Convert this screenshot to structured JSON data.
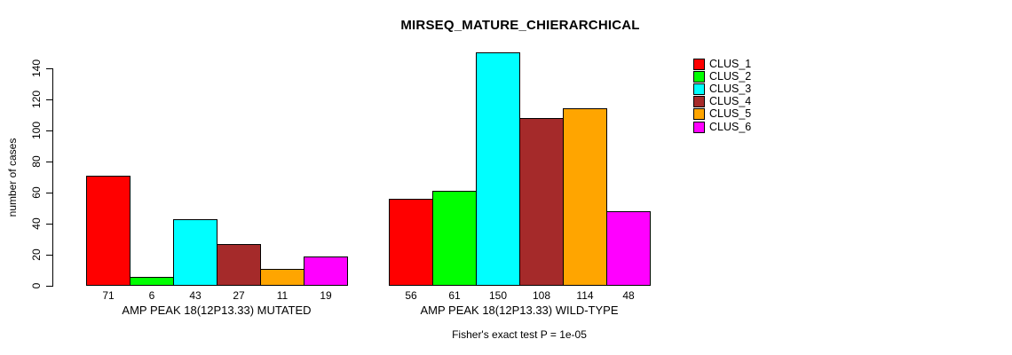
{
  "chart_data": {
    "type": "bar",
    "title": "MIRSEQ_MATURE_CHIERARCHICAL",
    "ylabel": "number of cases",
    "xlabel": "",
    "ylim": [
      0,
      150
    ],
    "yticks": [
      0,
      20,
      40,
      60,
      80,
      100,
      120,
      140
    ],
    "grid": false,
    "legend_position": "right",
    "series_names": [
      "CLUS_1",
      "CLUS_2",
      "CLUS_3",
      "CLUS_4",
      "CLUS_5",
      "CLUS_6"
    ],
    "colors": [
      "#ff0000",
      "#00ff00",
      "#00ffff",
      "#a52a2a",
      "#ffa500",
      "#ff00ff"
    ],
    "groups": [
      {
        "label": "AMP PEAK 18(12P13.33) MUTATED",
        "values": [
          71,
          6,
          43,
          27,
          11,
          19
        ]
      },
      {
        "label": "AMP PEAK 18(12P13.33) WILD-TYPE",
        "values": [
          56,
          61,
          150,
          108,
          114,
          48
        ]
      }
    ],
    "bar_value_labels": [
      [
        71,
        6,
        43,
        27,
        11,
        19
      ],
      [
        56,
        61,
        150,
        108,
        114,
        48
      ]
    ],
    "annotation": "Fisher's exact test P = 1e-05"
  }
}
